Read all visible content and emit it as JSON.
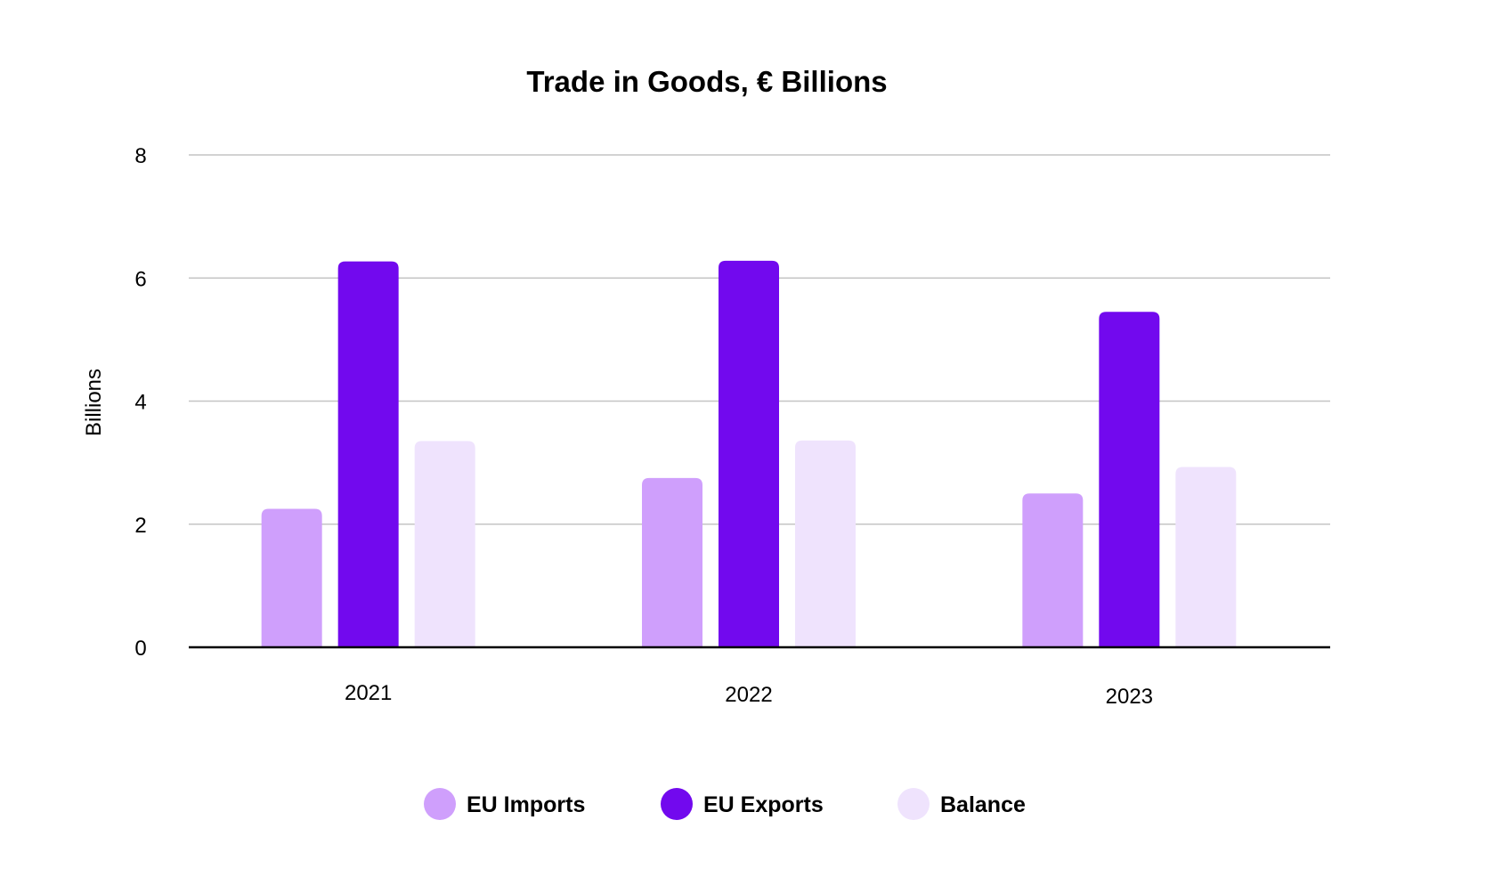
{
  "chart_data": {
    "type": "bar",
    "title": "Trade in Goods, € Billions",
    "xlabel": "",
    "ylabel": "Billions",
    "ylim": [
      0,
      8
    ],
    "yticks": [
      0,
      2,
      4,
      6,
      8
    ],
    "ytick_labels": [
      "0",
      "2",
      "4",
      "6",
      "8"
    ],
    "grid": true,
    "legend_position": "bottom-center",
    "categories": [
      "2021",
      "2022",
      "2023"
    ],
    "series": [
      {
        "name": "EU Imports",
        "color": "#cf9ffc",
        "values": [
          2.25,
          2.75,
          2.5
        ]
      },
      {
        "name": "EU Exports",
        "color": "#7209ee",
        "values": [
          6.27,
          6.28,
          5.45
        ]
      },
      {
        "name": "Balance",
        "color": "#efe3fd",
        "values": [
          3.35,
          3.36,
          2.93
        ]
      }
    ]
  }
}
